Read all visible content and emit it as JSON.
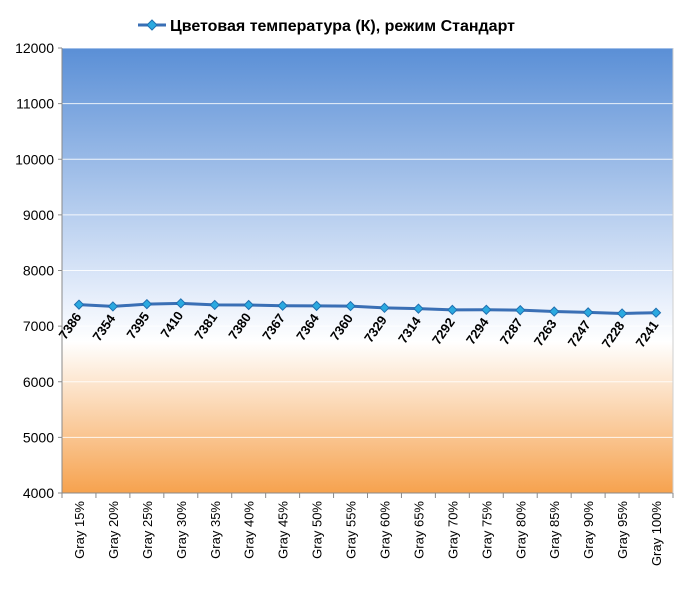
{
  "chart_data": {
    "type": "line",
    "legend_position": "top",
    "grid": true,
    "ylim": [
      4000,
      12000
    ],
    "y_ticks": [
      "4000",
      "5000",
      "6000",
      "7000",
      "8000",
      "9000",
      "10000",
      "11000",
      "12000"
    ],
    "categories": [
      "Gray 15%",
      "Gray 20%",
      "Gray 25%",
      "Gray 30%",
      "Gray 35%",
      "Gray 40%",
      "Gray 45%",
      "Gray 50%",
      "Gray 55%",
      "Gray 60%",
      "Gray 65%",
      "Gray 70%",
      "Gray 75%",
      "Gray 80%",
      "Gray 85%",
      "Gray 90%",
      "Gray 95%",
      "Gray 100%"
    ],
    "series": [
      {
        "name": "Цветовая температура (К), режим Стандарт",
        "color": "#3a6fb5",
        "values": [
          7386,
          7354,
          7395,
          7410,
          7381,
          7380,
          7367,
          7364,
          7360,
          7329,
          7314,
          7292,
          7294,
          7287,
          7263,
          7247,
          7228,
          7241
        ]
      }
    ],
    "data_labels": true,
    "background": {
      "top_color": "#5a8fd6",
      "mid_color": "#ffffff",
      "bottom_color": "#f6a24e"
    }
  }
}
